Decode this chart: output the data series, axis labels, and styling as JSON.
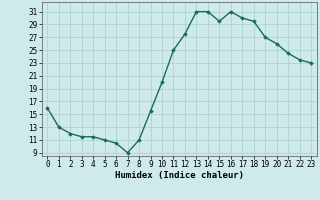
{
  "x": [
    0,
    1,
    2,
    3,
    4,
    5,
    6,
    7,
    8,
    9,
    10,
    11,
    12,
    13,
    14,
    15,
    16,
    17,
    18,
    19,
    20,
    21,
    22,
    23
  ],
  "y": [
    16,
    13,
    12,
    11.5,
    11.5,
    11,
    10.5,
    9,
    11,
    15.5,
    20,
    25,
    27.5,
    31,
    31,
    29.5,
    31,
    30,
    29.5,
    27,
    26,
    24.5,
    23.5,
    23
  ],
  "line_color": "#1a6b5a",
  "marker": "D",
  "marker_size": 1.8,
  "bg_color": "#ceeaea",
  "grid_color": "#aacece",
  "xlabel": "Humidex (Indice chaleur)",
  "xlabel_fontsize": 6.5,
  "ylabel_ticks": [
    9,
    11,
    13,
    15,
    17,
    19,
    21,
    23,
    25,
    27,
    29,
    31
  ],
  "ylim": [
    8.5,
    32.5
  ],
  "xlim": [
    -0.5,
    23.5
  ],
  "xtick_labels": [
    "0",
    "1",
    "2",
    "3",
    "4",
    "5",
    "6",
    "7",
    "8",
    "9",
    "10",
    "11",
    "12",
    "13",
    "14",
    "15",
    "16",
    "17",
    "18",
    "19",
    "20",
    "21",
    "22",
    "23"
  ],
  "tick_fontsize": 5.5,
  "line_width": 1.0
}
